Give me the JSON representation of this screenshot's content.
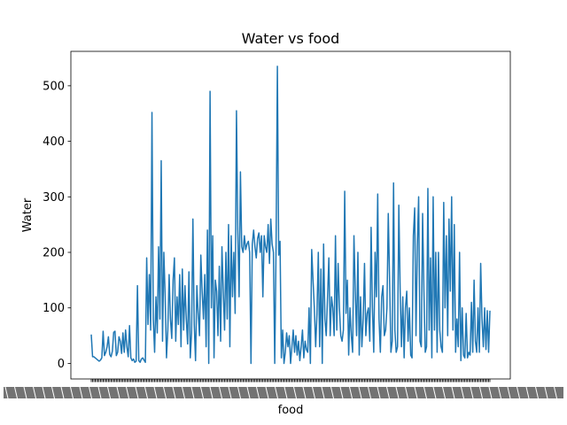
{
  "chart_data": {
    "type": "line",
    "title": "Water vs food",
    "xlabel": "food",
    "ylabel": "Water",
    "ylim": [
      -28,
      562
    ],
    "yticks": [
      0,
      100,
      200,
      300,
      400,
      500
    ],
    "ytick_labels": [
      "0",
      "100",
      "200",
      "300",
      "400",
      "500"
    ],
    "grid": false,
    "legend": "none",
    "series_color": "#1f77b4",
    "x_note": "categorical food names (several hundred); tick labels overlap and are unreadable",
    "series": [
      {
        "values": [
          52,
          12,
          12,
          10,
          8,
          6,
          4,
          6,
          10,
          58,
          14,
          20,
          30,
          48,
          16,
          12,
          22,
          56,
          58,
          14,
          20,
          48,
          40,
          18,
          55,
          20,
          60,
          30,
          12,
          68,
          10,
          5,
          8,
          2,
          4,
          140,
          5,
          2,
          8,
          10,
          6,
          2,
          190,
          70,
          160,
          60,
          452,
          80,
          20,
          120,
          55,
          210,
          80,
          365,
          40,
          200,
          120,
          10,
          60,
          160,
          80,
          45,
          150,
          190,
          40,
          120,
          70,
          160,
          30,
          170,
          60,
          140,
          80,
          35,
          165,
          10,
          55,
          260,
          70,
          5,
          140,
          90,
          50,
          195,
          130,
          80,
          160,
          30,
          240,
          0,
          490,
          100,
          230,
          10,
          150,
          130,
          50,
          175,
          40,
          210,
          130,
          60,
          200,
          80,
          250,
          30,
          230,
          120,
          200,
          90,
          455,
          240,
          120,
          345,
          210,
          200,
          230,
          205,
          215,
          220,
          200,
          0,
          215,
          240,
          210,
          190,
          225,
          235,
          200,
          230,
          120,
          230,
          210,
          200,
          250,
          180,
          260,
          215,
          200,
          0,
          210,
          535,
          195,
          220,
          10,
          60,
          0,
          20,
          55,
          30,
          50,
          0,
          30,
          60,
          20,
          50,
          15,
          40,
          5,
          30,
          60,
          10,
          40,
          25,
          20,
          100,
          0,
          205,
          150,
          100,
          30,
          90,
          200,
          30,
          170,
          0,
          215,
          80,
          50,
          120,
          190,
          50,
          120,
          100,
          50,
          230,
          60,
          180,
          100,
          50,
          40,
          60,
          310,
          90,
          150,
          15,
          100,
          50,
          20,
          230,
          130,
          50,
          200,
          15,
          120,
          30,
          80,
          180,
          50,
          90,
          100,
          40,
          245,
          100,
          20,
          200,
          120,
          305,
          80,
          20,
          120,
          140,
          50,
          60,
          100,
          270,
          150,
          20,
          40,
          325,
          60,
          20,
          30,
          285,
          130,
          30,
          120,
          10,
          100,
          130,
          40,
          100,
          15,
          10,
          230,
          280,
          50,
          210,
          300,
          40,
          30,
          270,
          130,
          20,
          30,
          315,
          60,
          190,
          10,
          300,
          60,
          200,
          20,
          200,
          60,
          30,
          20,
          290,
          100,
          230,
          50,
          260,
          130,
          300,
          60,
          250,
          20,
          80,
          30,
          200,
          5,
          100,
          15,
          10,
          90,
          10,
          20,
          15,
          110,
          20,
          150,
          40,
          20,
          100,
          20,
          180,
          80,
          30,
          100,
          25,
          95,
          20,
          95
        ]
      }
    ]
  }
}
